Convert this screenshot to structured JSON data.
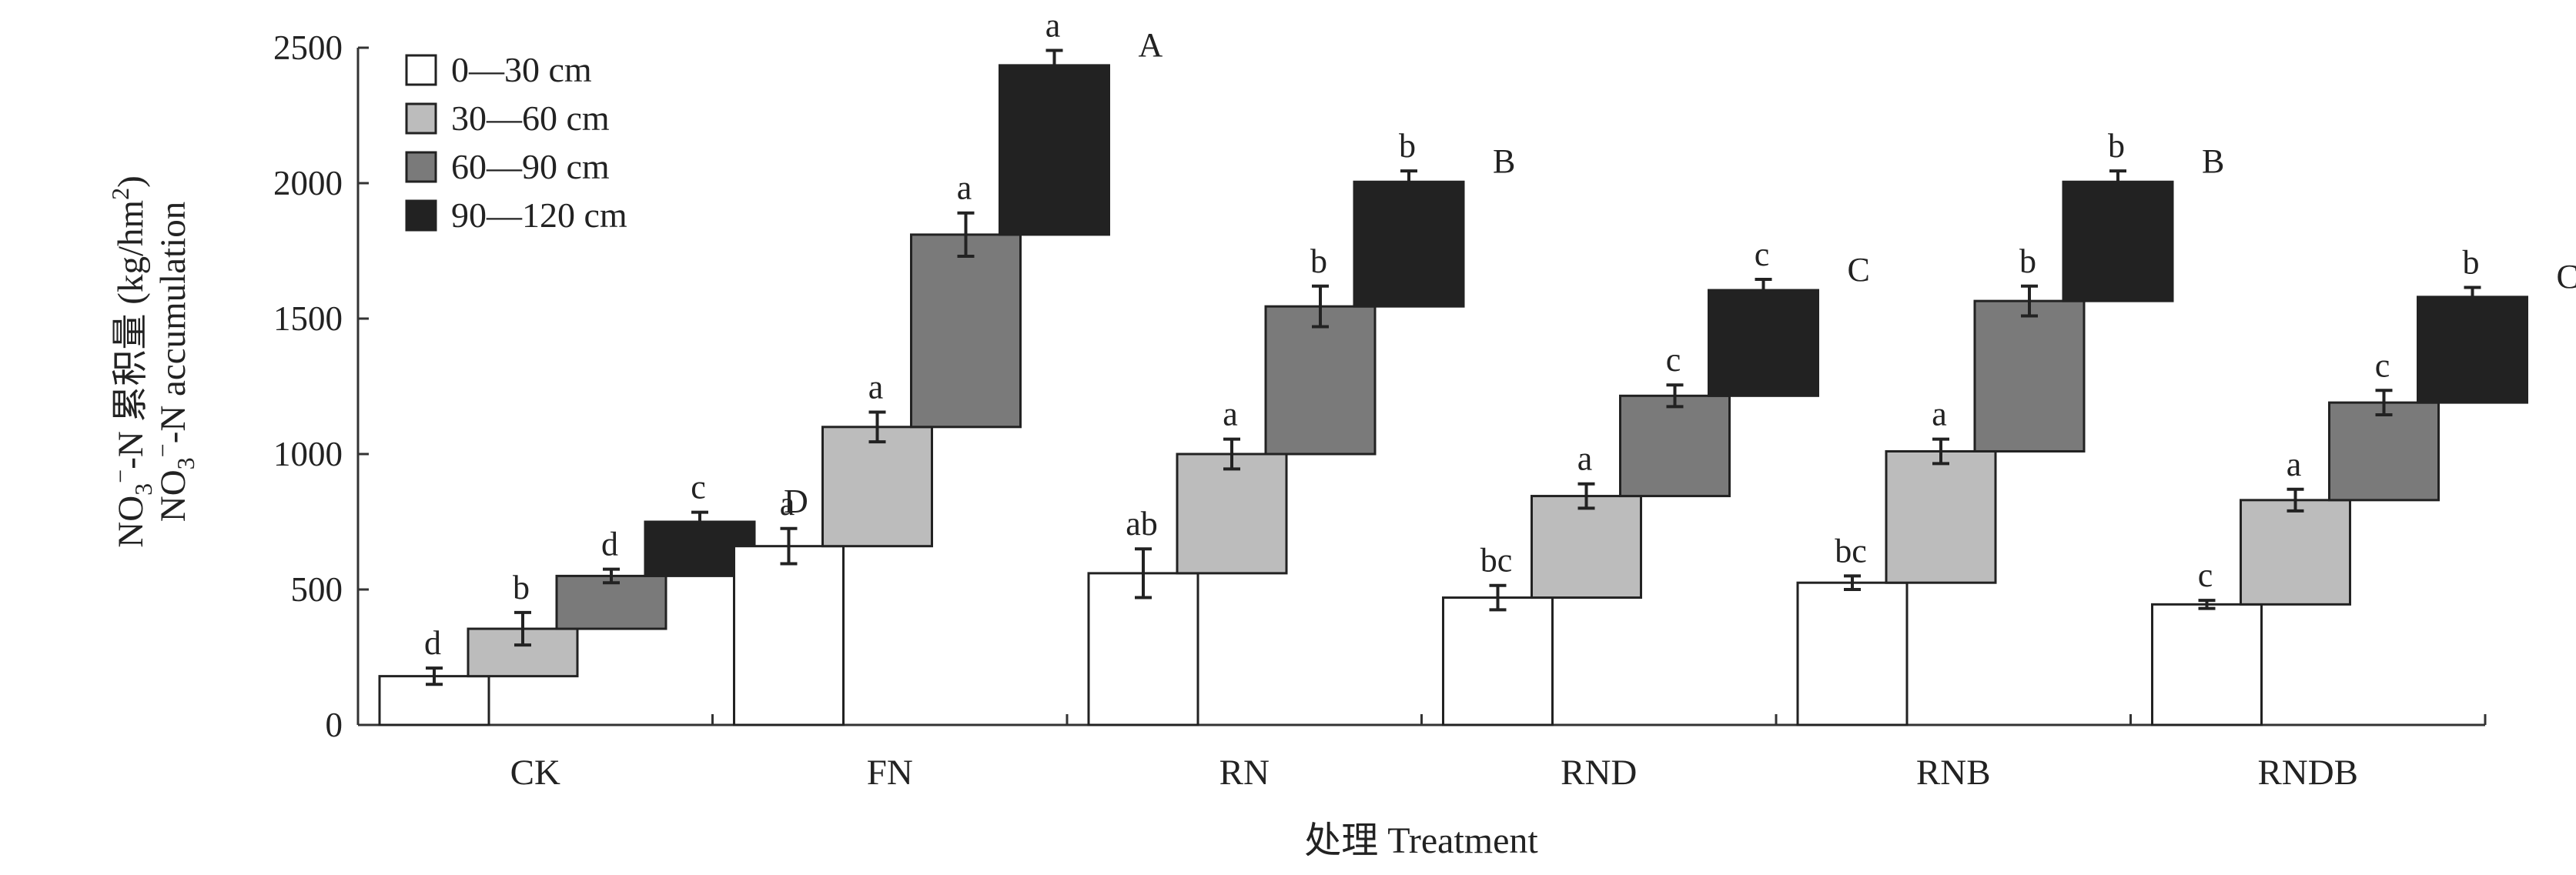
{
  "chart_data": {
    "type": "bar",
    "subtype": "stacked-step",
    "xlabel": "处理 Treatment",
    "ylabel": {
      "line1": "NO3−-N 累积量 (kg/hm2)",
      "line2": "NO3−-N accumulation"
    },
    "ylim": [
      0,
      2500
    ],
    "yticks": [
      "0",
      "500",
      "1000",
      "1500",
      "2000",
      "2500"
    ],
    "categories": [
      "CK",
      "FN",
      "RN",
      "RND",
      "RNB",
      "RNDB"
    ],
    "series": [
      {
        "name": "0—30 cm",
        "color": "#ffffff",
        "values": [
          180,
          660,
          560,
          470,
          525,
          445
        ],
        "errors": [
          30,
          65,
          90,
          45,
          25,
          15
        ],
        "sig": [
          "d",
          "a",
          "ab",
          "bc",
          "bc",
          "c"
        ]
      },
      {
        "name": "30—60 cm",
        "color": "#bcbcbc",
        "values": [
          355,
          1100,
          1000,
          845,
          1010,
          830
        ],
        "errors": [
          60,
          55,
          55,
          45,
          45,
          40
        ],
        "sig": [
          "b",
          "a",
          "a",
          "a",
          "a",
          "a"
        ]
      },
      {
        "name": "60—90 cm",
        "color": "#7a7a7a",
        "values": [
          550,
          1810,
          1545,
          1215,
          1565,
          1190
        ],
        "errors": [
          25,
          80,
          75,
          40,
          55,
          45
        ],
        "sig": [
          "d",
          "a",
          "b",
          "c",
          "b",
          "c"
        ]
      },
      {
        "name": "90—120 cm",
        "color": "#222222",
        "values": [
          750,
          2435,
          2005,
          1605,
          2005,
          1580
        ],
        "errors": [
          35,
          55,
          40,
          40,
          40,
          35
        ],
        "sig": [
          "c",
          "a",
          "b",
          "c",
          "b",
          "b"
        ]
      }
    ],
    "total_sig": [
      "D",
      "A",
      "B",
      "C",
      "B",
      "C"
    ],
    "legend": {
      "position": "top-left"
    },
    "grid": false
  }
}
